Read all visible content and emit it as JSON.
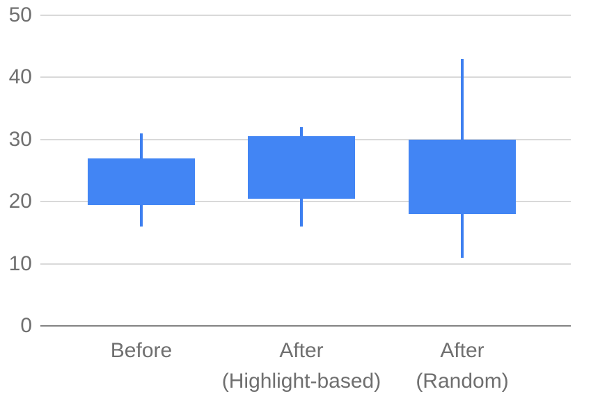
{
  "chart_data": {
    "type": "candlestick",
    "title": "",
    "xlabel": "",
    "ylabel": "",
    "legend": "none",
    "grid": true,
    "y_axis": {
      "min": 0,
      "max": 50,
      "ticks": [
        0,
        10,
        20,
        30,
        40,
        50
      ]
    },
    "categories": [
      {
        "label": "Before",
        "label_lines": [
          "Before"
        ],
        "whisker_low": 16,
        "box_low": 19.5,
        "box_high": 27,
        "whisker_high": 31
      },
      {
        "label": "After (Highlight-based)",
        "label_lines": [
          "After",
          "(Highlight-based)"
        ],
        "whisker_low": 16,
        "box_low": 20.5,
        "box_high": 30.5,
        "whisker_high": 32
      },
      {
        "label": "After (Random)",
        "label_lines": [
          "After",
          "(Random)"
        ],
        "whisker_low": 11,
        "box_low": 18,
        "box_high": 30,
        "whisker_high": 43
      }
    ],
    "colors": {
      "box_fill": "#4285f4",
      "whisker": "#3d7ff0",
      "gridline": "#d9d9d9",
      "baseline": "#828282",
      "label_text": "#6f6f6f",
      "background": "#ffffff"
    }
  }
}
